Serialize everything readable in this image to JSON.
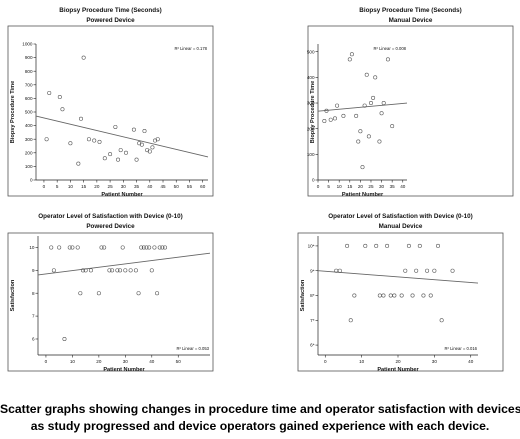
{
  "caption": {
    "line1": "Scatter graphs showing changes in procedure time and operator satisfaction with devices",
    "line2": "as study progressed and device operators gained experience with each device."
  },
  "chart_data": [
    {
      "type": "scatter",
      "title": "Biopsy Procedure Time (Seconds)",
      "subtitle": "Powered Device",
      "xlabel": "Patient Number",
      "ylabel": "Biopsy Procedure Time",
      "xlim": [
        -3,
        62
      ],
      "ylim": [
        0,
        1000
      ],
      "xticks": [
        0,
        5,
        10,
        15,
        20,
        25,
        30,
        35,
        40,
        45,
        50,
        55,
        60
      ],
      "yticks": [
        0,
        100,
        200,
        300,
        400,
        500,
        600,
        700,
        800,
        900,
        1000
      ],
      "ytick_suffix": "",
      "rsq_label": "R² Linear = 0.178",
      "rsq_position": "top-right",
      "fit": {
        "x": [
          -3,
          62
        ],
        "y": [
          470,
          170
        ]
      },
      "points": {
        "x": [
          1,
          2,
          6,
          7,
          10,
          13,
          14,
          15,
          17,
          19,
          21,
          23,
          25,
          27,
          28,
          29,
          31,
          34,
          35,
          36,
          37,
          38,
          39,
          40,
          41,
          42,
          43
        ],
        "y": [
          300,
          640,
          610,
          520,
          270,
          120,
          450,
          900,
          300,
          290,
          280,
          160,
          190,
          390,
          150,
          220,
          200,
          370,
          150,
          270,
          260,
          360,
          220,
          210,
          240,
          290,
          300
        ]
      }
    },
    {
      "type": "scatter",
      "title": "Biopsy Procedure Time (Seconds)",
      "subtitle": "Manual Device",
      "xlabel": "Patient Number",
      "ylabel": "Biopsy Procedure Time",
      "xlim": [
        0,
        42
      ],
      "ylim": [
        0,
        530
      ],
      "xticks": [
        0,
        5,
        10,
        15,
        20,
        25,
        30,
        35,
        40
      ],
      "yticks": [
        0,
        100,
        200,
        300,
        400,
        500
      ],
      "ytick_suffix": "",
      "rsq_label": "R² Linear = 0.008",
      "rsq_position": "top-right",
      "fit": {
        "x": [
          0,
          42
        ],
        "y": [
          268,
          300
        ]
      },
      "points": {
        "x": [
          3,
          4,
          6,
          8,
          9,
          12,
          15,
          16,
          18,
          19,
          20,
          21,
          22,
          23,
          24,
          25,
          26,
          27,
          29,
          30,
          31,
          33,
          35
        ],
        "y": [
          230,
          270,
          235,
          240,
          290,
          250,
          470,
          490,
          250,
          150,
          190,
          50,
          290,
          410,
          170,
          300,
          320,
          400,
          150,
          260,
          300,
          470,
          210
        ]
      }
    },
    {
      "type": "scatter",
      "title": "Operator Level of Satisfaction with Device (0-10)",
      "subtitle": "Powered Device",
      "xlabel": "Patient Number",
      "ylabel": "Satisfaction",
      "xlim": [
        -3,
        62
      ],
      "ylim": [
        5.3,
        10.5
      ],
      "xticks": [
        0,
        10,
        20,
        30,
        40,
        50
      ],
      "yticks": [
        6,
        7,
        8,
        9,
        10
      ],
      "ytick_suffix": "",
      "rsq_label": "R² Linear = 0.053",
      "rsq_position": "bottom-right",
      "fit": {
        "x": [
          -3,
          62
        ],
        "y": [
          8.8,
          9.75
        ]
      },
      "points": {
        "x": [
          2,
          3,
          5,
          7,
          9,
          10,
          12,
          13,
          14,
          15,
          17,
          20,
          21,
          22,
          24,
          25,
          27,
          28,
          29,
          30,
          32,
          34,
          35,
          36,
          37,
          38,
          39,
          40,
          41,
          42,
          43,
          44,
          45
        ],
        "y": [
          10,
          9,
          10,
          6,
          10,
          10,
          10,
          8,
          9,
          9,
          9,
          8,
          10,
          10,
          9,
          9,
          9,
          9,
          10,
          9,
          9,
          9,
          8,
          10,
          10,
          10,
          10,
          9,
          10,
          8,
          10,
          10,
          10
        ]
      }
    },
    {
      "type": "scatter",
      "title": "Operator Level of Satisfaction with Device (0-10)",
      "subtitle": "Manual Device",
      "xlabel": "Patient Number",
      "ylabel": "Satisfaction",
      "xlim": [
        -2,
        42
      ],
      "ylim": [
        5.6,
        10.4
      ],
      "xticks": [
        0,
        10,
        20,
        30,
        40
      ],
      "yticks": [
        6,
        7,
        8,
        9,
        10
      ],
      "ytick_suffix": "*",
      "rsq_label": "R² Linear = 0.016",
      "rsq_position": "bottom-right",
      "fit": {
        "x": [
          -2,
          42
        ],
        "y": [
          9.0,
          8.5
        ]
      },
      "points": {
        "x": [
          3,
          4,
          6,
          7,
          8,
          11,
          14,
          15,
          16,
          17,
          18,
          19,
          21,
          22,
          23,
          24,
          25,
          26,
          27,
          28,
          29,
          30,
          31,
          32,
          35
        ],
        "y": [
          9,
          9,
          10,
          7,
          8,
          10,
          10,
          8,
          8,
          10,
          8,
          8,
          8,
          9,
          10,
          8,
          9,
          10,
          8,
          9,
          8,
          9,
          10,
          7,
          9
        ]
      }
    }
  ]
}
